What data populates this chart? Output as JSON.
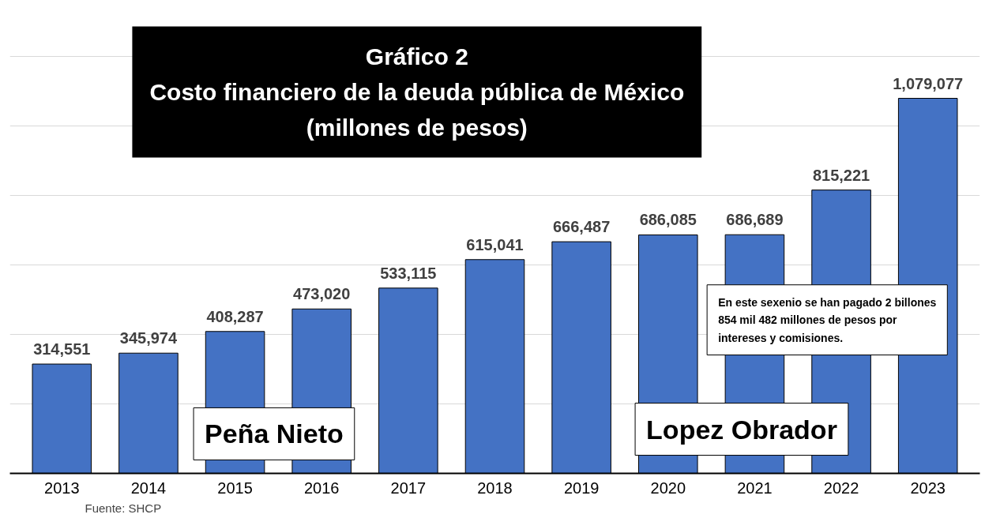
{
  "chart_data": {
    "type": "bar",
    "title": "Gráfico 2",
    "subtitle": "Costo financiero de la deuda pública de México\n(millones de pesos)",
    "categories": [
      "2013",
      "2014",
      "2015",
      "2016",
      "2017",
      "2018",
      "2019",
      "2020",
      "2021",
      "2022",
      "2023"
    ],
    "values": [
      314551,
      345974,
      408287,
      473020,
      533115,
      615041,
      666487,
      686085,
      686689,
      815221,
      1079077
    ],
    "value_labels": [
      "314,551",
      "345,974",
      "408,287",
      "473,020",
      "533,115",
      "615,041",
      "666,487",
      "686,085",
      "686,689",
      "815,221",
      "1,079,077"
    ],
    "color": "#4472c4",
    "grid": "y",
    "tick_labels": "x",
    "annotations": [
      "Peña Nieto",
      "Lopez Obrador",
      "En este sexenio se han pagado 2 billones\n854 mil 482 millones de pesos por\nintereses y comisiones.",
      "Fuente: SHCP"
    ]
  }
}
